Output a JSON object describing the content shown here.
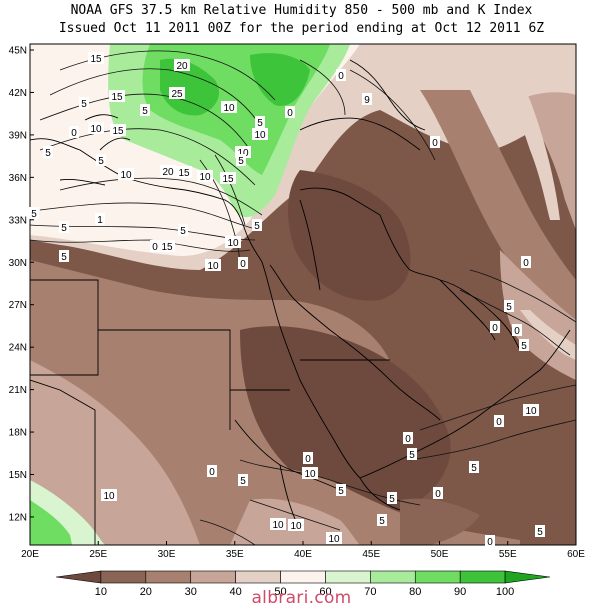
{
  "title": {
    "line1": "NOAA GFS 37.5 km Relative Humidity 850 - 500 mb and K Index",
    "line2": "Issued Oct 11 2011 00Z for the period ending at Oct 12 2011 6Z"
  },
  "axes": {
    "lat_labels": [
      "45N",
      "42N",
      "39N",
      "36N",
      "33N",
      "30N",
      "27N",
      "24N",
      "21N",
      "18N",
      "15N",
      "12N"
    ],
    "lon_labels": [
      "20E",
      "25E",
      "30E",
      "35E",
      "40E",
      "45E",
      "50E",
      "55E",
      "60E"
    ]
  },
  "colorbar": {
    "ticks": [
      "10",
      "20",
      "30",
      "40",
      "50",
      "60",
      "70",
      "80",
      "90",
      "100"
    ],
    "colors": [
      "#6e4a3e",
      "#8a6455",
      "#a88070",
      "#c7a598",
      "#e5d0c6",
      "#fbf3ec",
      "#d8f5d0",
      "#a8eb9a",
      "#6fdc62",
      "#3ec43a",
      "#1fa620"
    ]
  },
  "contour_labels": [
    "15",
    "20",
    "0",
    "9",
    "5",
    "25",
    "5",
    "15",
    "15",
    "0",
    "10",
    "10",
    "5",
    "0",
    "10",
    "0",
    "10",
    "5",
    "5",
    "20",
    "15",
    "10",
    "10",
    "5",
    "15",
    "5",
    "1",
    "5",
    "5",
    "10",
    "15",
    "0",
    "5",
    "0",
    "5",
    "10",
    "0",
    "0",
    "5",
    "0",
    "5",
    "10",
    "0",
    "0",
    "5",
    "0",
    "10",
    "5",
    "0",
    "10",
    "5",
    "5",
    "5",
    "10",
    "0",
    "10",
    "5",
    "10",
    "0",
    "5"
  ],
  "watermark": "albrari.com"
}
